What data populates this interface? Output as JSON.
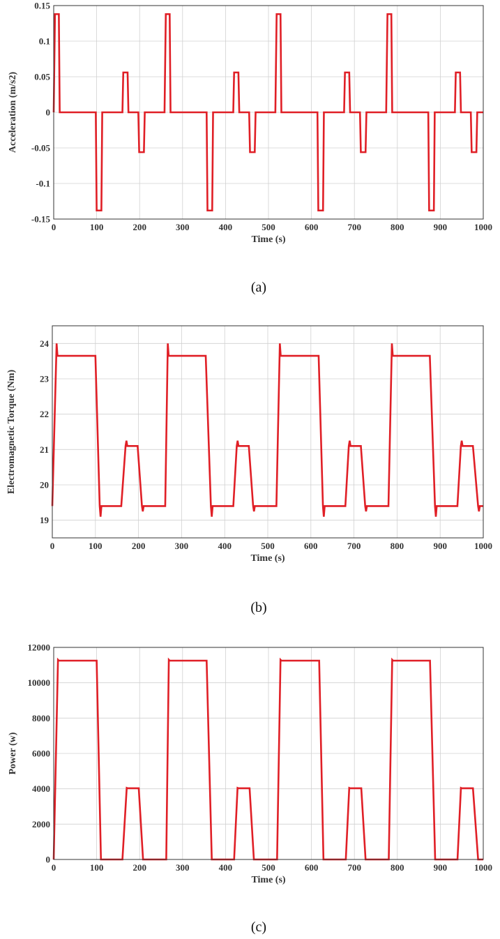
{
  "chart_data": [
    {
      "type": "line",
      "caption": "(a)",
      "xlabel": "Time (s)",
      "ylabel": "Acceleration (m/s2)",
      "xlim": [
        0,
        1000
      ],
      "ylim": [
        -0.15,
        0.15
      ],
      "xticks": [
        0,
        100,
        200,
        300,
        400,
        500,
        600,
        700,
        800,
        900,
        1000
      ],
      "yticks": [
        -0.15,
        -0.1,
        -0.05,
        0,
        0.05,
        0.1,
        0.15
      ],
      "yticklabels": [
        "-0.15",
        "-0.1",
        "-0.05",
        "0",
        "0.05",
        "0.1",
        "0.15"
      ],
      "grid": true,
      "color": "#e01f26",
      "series": [
        {
          "x": [
            0,
            3,
            12,
            14,
            98,
            100,
            111,
            113,
            160,
            162,
            172,
            174,
            197,
            199,
            210,
            212,
            258,
            261,
            270,
            272,
            356,
            358,
            369,
            371,
            418,
            420,
            430,
            432,
            455,
            457,
            468,
            470,
            516,
            519,
            528,
            530,
            614,
            616,
            627,
            629,
            676,
            678,
            688,
            690,
            713,
            715,
            726,
            728,
            774,
            777,
            786,
            788,
            872,
            874,
            885,
            887,
            934,
            936,
            946,
            948,
            971,
            973,
            984,
            986,
            992,
            994,
            1000
          ],
          "y": [
            0,
            0.138,
            0.138,
            0,
            0,
            -0.138,
            -0.138,
            0,
            0,
            0.056,
            0.056,
            0,
            0,
            -0.056,
            -0.056,
            0,
            0,
            0.138,
            0.138,
            0,
            0,
            -0.138,
            -0.138,
            0,
            0,
            0.056,
            0.056,
            0,
            0,
            -0.056,
            -0.056,
            0,
            0,
            0.138,
            0.138,
            0,
            0,
            -0.138,
            -0.138,
            0,
            0,
            0.056,
            0.056,
            0,
            0,
            -0.056,
            -0.056,
            0,
            0,
            0.138,
            0.138,
            0,
            0,
            -0.138,
            -0.138,
            0,
            0,
            0.056,
            0.056,
            0,
            0,
            -0.056,
            -0.056,
            0,
            0,
            0,
            0
          ]
        }
      ]
    },
    {
      "type": "line",
      "caption": "(b)",
      "xlabel": "Time (s)",
      "ylabel": "Electromagnetic Torque (Nm)",
      "xlim": [
        0,
        1000
      ],
      "ylim": [
        18.5,
        24.5
      ],
      "xticks": [
        0,
        100,
        200,
        300,
        400,
        500,
        600,
        700,
        800,
        900,
        1000
      ],
      "yticks": [
        19,
        20,
        21,
        22,
        23,
        24
      ],
      "yticklabels": [
        "19",
        "20",
        "21",
        "22",
        "23",
        "24"
      ],
      "grid": true,
      "color": "#e01f26",
      "series": [
        {
          "x": [
            0,
            10,
            12,
            100,
            110,
            112,
            114,
            160,
            170,
            172,
            174,
            198,
            208,
            210,
            212,
            262,
            268,
            270,
            356,
            368,
            370,
            372,
            420,
            428,
            430,
            432,
            456,
            466,
            468,
            470,
            520,
            528,
            530,
            618,
            628,
            630,
            632,
            680,
            688,
            690,
            692,
            716,
            726,
            728,
            730,
            780,
            788,
            790,
            876,
            888,
            890,
            892,
            940,
            948,
            950,
            952,
            976,
            988,
            990,
            992,
            1000
          ],
          "y": [
            19.4,
            24.0,
            23.65,
            23.65,
            19.4,
            19.1,
            19.4,
            19.4,
            21.1,
            21.25,
            21.1,
            21.1,
            19.4,
            19.25,
            19.4,
            19.4,
            24.0,
            23.65,
            23.65,
            19.4,
            19.1,
            19.4,
            19.4,
            21.1,
            21.25,
            21.1,
            21.1,
            19.4,
            19.25,
            19.4,
            19.4,
            24.0,
            23.65,
            23.65,
            19.4,
            19.1,
            19.4,
            19.4,
            21.1,
            21.25,
            21.1,
            21.1,
            19.4,
            19.25,
            19.4,
            19.4,
            24.0,
            23.65,
            23.65,
            19.4,
            19.1,
            19.4,
            19.4,
            21.1,
            21.25,
            21.1,
            21.1,
            19.4,
            19.25,
            19.4,
            19.4
          ]
        }
      ]
    },
    {
      "type": "line",
      "caption": "(c)",
      "xlabel": "Time (s)",
      "ylabel": "Power (w)",
      "xlim": [
        0,
        1000
      ],
      "ylim": [
        0,
        12000
      ],
      "xticks": [
        0,
        100,
        200,
        300,
        400,
        500,
        600,
        700,
        800,
        900,
        1000
      ],
      "yticks": [
        0,
        2000,
        4000,
        6000,
        8000,
        10000,
        12000
      ],
      "yticklabels": [
        "0",
        "2000",
        "4000",
        "6000",
        "8000",
        "10000",
        "12000"
      ],
      "grid": true,
      "color": "#e01f26",
      "series": [
        {
          "x": [
            0,
            10,
            12,
            100,
            110,
            160,
            170,
            172,
            198,
            208,
            262,
            268,
            270,
            356,
            368,
            420,
            428,
            430,
            456,
            466,
            520,
            528,
            530,
            618,
            628,
            680,
            688,
            690,
            716,
            726,
            780,
            788,
            790,
            876,
            888,
            940,
            948,
            950,
            976,
            988,
            1000
          ],
          "y": [
            0,
            11300,
            11250,
            11250,
            0,
            0,
            4050,
            4030,
            4030,
            0,
            0,
            11300,
            11250,
            11250,
            0,
            0,
            4050,
            4030,
            4030,
            0,
            0,
            11300,
            11250,
            11250,
            0,
            0,
            4050,
            4030,
            4030,
            0,
            0,
            11300,
            11250,
            11250,
            0,
            0,
            4050,
            4030,
            4030,
            0,
            0
          ]
        }
      ]
    }
  ]
}
